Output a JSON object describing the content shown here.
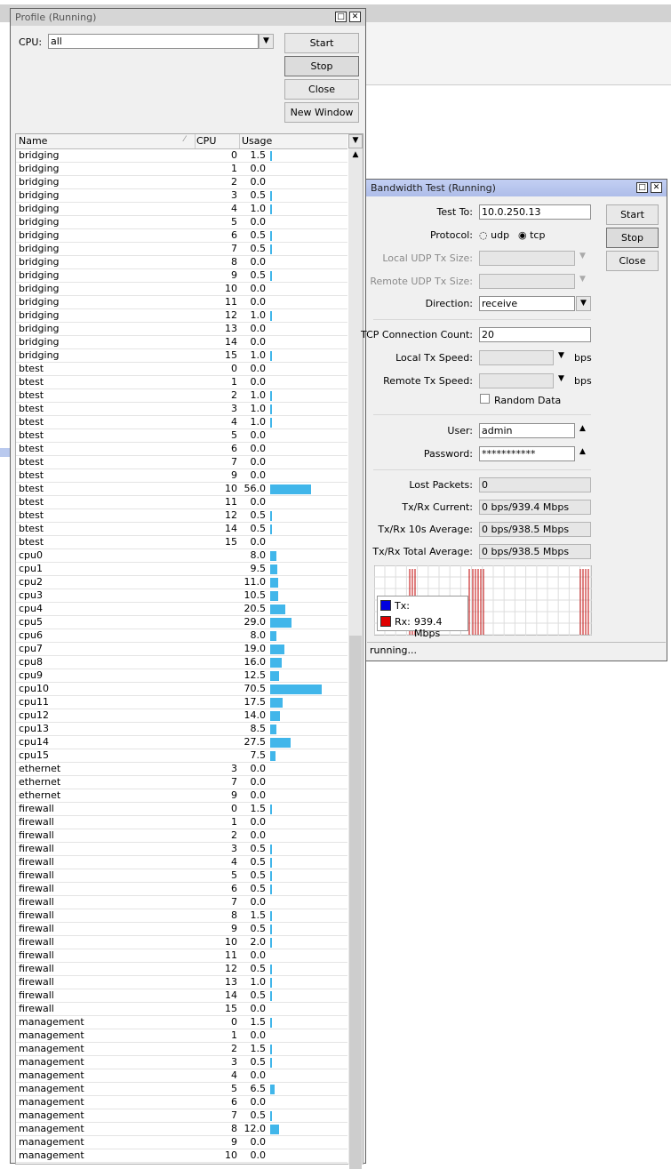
{
  "profile": {
    "title": "Profile (Running)",
    "cpu_label": "CPU:",
    "cpu_value": "all",
    "buttons": [
      "Start",
      "Stop",
      "Close",
      "New Window"
    ],
    "columns": [
      "Name",
      "CPU",
      "Usage"
    ],
    "rows": [
      [
        "bridging",
        0,
        "1.5"
      ],
      [
        "bridging",
        1,
        "0.0"
      ],
      [
        "bridging",
        2,
        "0.0"
      ],
      [
        "bridging",
        3,
        "0.5"
      ],
      [
        "bridging",
        4,
        "1.0"
      ],
      [
        "bridging",
        5,
        "0.0"
      ],
      [
        "bridging",
        6,
        "0.5"
      ],
      [
        "bridging",
        7,
        "0.5"
      ],
      [
        "bridging",
        8,
        "0.0"
      ],
      [
        "bridging",
        9,
        "0.5"
      ],
      [
        "bridging",
        10,
        "0.0"
      ],
      [
        "bridging",
        11,
        "0.0"
      ],
      [
        "bridging",
        12,
        "1.0"
      ],
      [
        "bridging",
        13,
        "0.0"
      ],
      [
        "bridging",
        14,
        "0.0"
      ],
      [
        "bridging",
        15,
        "1.0"
      ],
      [
        "btest",
        0,
        "0.0"
      ],
      [
        "btest",
        1,
        "0.0"
      ],
      [
        "btest",
        2,
        "1.0"
      ],
      [
        "btest",
        3,
        "1.0"
      ],
      [
        "btest",
        4,
        "1.0"
      ],
      [
        "btest",
        5,
        "0.0"
      ],
      [
        "btest",
        6,
        "0.0"
      ],
      [
        "btest",
        7,
        "0.0"
      ],
      [
        "btest",
        9,
        "0.0"
      ],
      [
        "btest",
        10,
        "56.0"
      ],
      [
        "btest",
        11,
        "0.0"
      ],
      [
        "btest",
        12,
        "0.5"
      ],
      [
        "btest",
        14,
        "0.5"
      ],
      [
        "btest",
        15,
        "0.0"
      ],
      [
        "cpu0",
        null,
        "8.0"
      ],
      [
        "cpu1",
        null,
        "9.5"
      ],
      [
        "cpu2",
        null,
        "11.0"
      ],
      [
        "cpu3",
        null,
        "10.5"
      ],
      [
        "cpu4",
        null,
        "20.5"
      ],
      [
        "cpu5",
        null,
        "29.0"
      ],
      [
        "cpu6",
        null,
        "8.0"
      ],
      [
        "cpu7",
        null,
        "19.0"
      ],
      [
        "cpu8",
        null,
        "16.0"
      ],
      [
        "cpu9",
        null,
        "12.5"
      ],
      [
        "cpu10",
        null,
        "70.5"
      ],
      [
        "cpu11",
        null,
        "17.5"
      ],
      [
        "cpu12",
        null,
        "14.0"
      ],
      [
        "cpu13",
        null,
        "8.5"
      ],
      [
        "cpu14",
        null,
        "27.5"
      ],
      [
        "cpu15",
        null,
        "7.5"
      ],
      [
        "ethernet",
        3,
        "0.0"
      ],
      [
        "ethernet",
        7,
        "0.0"
      ],
      [
        "ethernet",
        9,
        "0.0"
      ],
      [
        "firewall",
        0,
        "1.5"
      ],
      [
        "firewall",
        1,
        "0.0"
      ],
      [
        "firewall",
        2,
        "0.0"
      ],
      [
        "firewall",
        3,
        "0.5"
      ],
      [
        "firewall",
        4,
        "0.5"
      ],
      [
        "firewall",
        5,
        "0.5"
      ],
      [
        "firewall",
        6,
        "0.5"
      ],
      [
        "firewall",
        7,
        "0.0"
      ],
      [
        "firewall",
        8,
        "1.5"
      ],
      [
        "firewall",
        9,
        "0.5"
      ],
      [
        "firewall",
        10,
        "2.0"
      ],
      [
        "firewall",
        11,
        "0.0"
      ],
      [
        "firewall",
        12,
        "0.5"
      ],
      [
        "firewall",
        13,
        "1.0"
      ],
      [
        "firewall",
        14,
        "0.5"
      ],
      [
        "firewall",
        15,
        "0.0"
      ],
      [
        "management",
        0,
        "1.5"
      ],
      [
        "management",
        1,
        "0.0"
      ],
      [
        "management",
        2,
        "1.5"
      ],
      [
        "management",
        3,
        "0.5"
      ],
      [
        "management",
        4,
        "0.0"
      ],
      [
        "management",
        5,
        "6.5"
      ],
      [
        "management",
        6,
        "0.0"
      ],
      [
        "management",
        7,
        "0.5"
      ],
      [
        "management",
        8,
        "12.0"
      ],
      [
        "management",
        9,
        "0.0"
      ],
      [
        "management",
        10,
        "0.0"
      ]
    ]
  },
  "bandwidth_test": {
    "title": "Bandwidth Test (Running)",
    "buttons": [
      "Start",
      "Stop",
      "Close"
    ],
    "test_to_label": "Test To:",
    "test_to": "10.0.250.13",
    "protocol_label": "Protocol:",
    "protocol_options": [
      "udp",
      "tcp"
    ],
    "local_udp_label": "Local UDP Tx Size:",
    "remote_udp_label": "Remote UDP Tx Size:",
    "direction_label": "Direction:",
    "direction": "receive",
    "tcp_count_label": "TCP Connection Count:",
    "tcp_count": "20",
    "local_tx_label": "Local Tx Speed:",
    "remote_tx_label": "Remote Tx Speed:",
    "speed_unit": "bps",
    "random_data": "Random Data",
    "user_label": "User:",
    "user": "admin",
    "password_label": "Password:",
    "password": "***********",
    "lost_label": "Lost Packets:",
    "lost": "0",
    "current_label": "Tx/Rx Current:",
    "current": "0 bps/939.4 Mbps",
    "avg10_label": "Tx/Rx 10s Average:",
    "avg10": "0 bps/938.5 Mbps",
    "total_label": "Tx/Rx Total Average:",
    "total": "0 bps/938.5 Mbps",
    "legend": {
      "tx": "Tx:",
      "rx": "Rx:",
      "rx_value": "939.4 Mbps"
    },
    "status": "running..."
  }
}
